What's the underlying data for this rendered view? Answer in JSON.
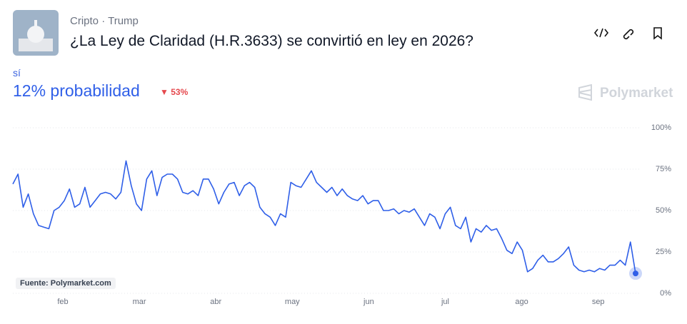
{
  "header": {
    "category": "Cripto",
    "separator": "·",
    "tag": "Trump",
    "title": "¿La Ley de Claridad (H.R.3633) se convirtió en ley en 2026?"
  },
  "chart_data": {
    "type": "line",
    "outcome": "sí",
    "headline": "12% probabilidad",
    "change": "53%",
    "brand": "Polymarket",
    "source": "Fuente: Polymarket.com",
    "x_axis_labels": [
      "feb",
      "mar",
      "abr",
      "may",
      "jun",
      "jul",
      "ago",
      "sep"
    ],
    "series": [
      {
        "name": "sí",
        "color": "#2f5fe8",
        "values": [
          66,
          72,
          52,
          60,
          48,
          41,
          40,
          39,
          50,
          52,
          56,
          63,
          52,
          54,
          64,
          52,
          56,
          60,
          61,
          60,
          57,
          61,
          80,
          65,
          54,
          50,
          69,
          74,
          59,
          70,
          72,
          72,
          69,
          61,
          60,
          62,
          59,
          69,
          69,
          63,
          54,
          61,
          66,
          67,
          59,
          65,
          67,
          64,
          52,
          48,
          46,
          41,
          48,
          46,
          67,
          65,
          64,
          69,
          74,
          67,
          64,
          61,
          64,
          59,
          63,
          59,
          57,
          56,
          59,
          54,
          56,
          56,
          50,
          50,
          51,
          48,
          50,
          49,
          51,
          46,
          41,
          48,
          46,
          39,
          48,
          52,
          41,
          39,
          46,
          31,
          39,
          37,
          41,
          38,
          39,
          33,
          26,
          24,
          31,
          26,
          13,
          15,
          20,
          23,
          19,
          19,
          21,
          24,
          28,
          17,
          14,
          13,
          14,
          13,
          15,
          14,
          17,
          17,
          20,
          17,
          31,
          12
        ]
      }
    ],
    "ylim": [
      0,
      100
    ],
    "yticks": [
      {
        "value": 0,
        "label": "0%"
      },
      {
        "value": 25,
        "label": "25%"
      },
      {
        "value": 50,
        "label": "50%"
      },
      {
        "value": 75,
        "label": "75%"
      },
      {
        "value": 100,
        "label": "100%"
      }
    ],
    "grid": true
  }
}
